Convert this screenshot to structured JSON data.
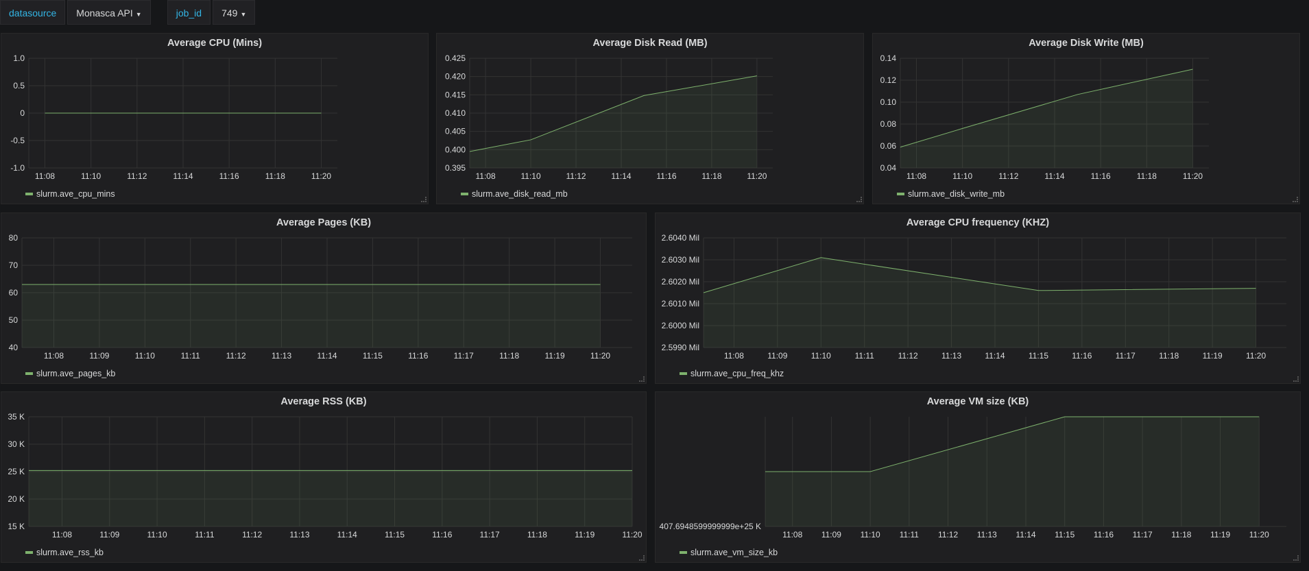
{
  "toolbar": {
    "variables": [
      {
        "label": "datasource",
        "value": "Monasca API"
      },
      {
        "label": "job_id",
        "value": "749"
      }
    ]
  },
  "colors": {
    "series": "#7eb26d",
    "grid": "#333333",
    "text": "#d8d9da",
    "panel_bg": "#1f1f21",
    "link": "#33b5e5"
  },
  "panels": [
    {
      "title": "Average CPU (Mins)",
      "legend": "slurm.ave_cpu_mins",
      "chart_data": {
        "type": "line",
        "x_ticks": [
          "11:08",
          "11:10",
          "11:12",
          "11:14",
          "11:16",
          "11:18",
          "11:20"
        ],
        "y_ticks": [
          "1.0",
          "0.5",
          "0",
          "-0.5",
          "-1.0"
        ],
        "ylim": [
          -1.0,
          1.0
        ],
        "xlim_min": [
          -0.7,
          12.7
        ],
        "points": [
          [
            0,
            0
          ],
          [
            12,
            0
          ]
        ],
        "fill": false
      }
    },
    {
      "title": "Average Disk Read (MB)",
      "legend": "slurm.ave_disk_read_mb",
      "chart_data": {
        "type": "area",
        "x_ticks": [
          "11:08",
          "11:10",
          "11:12",
          "11:14",
          "11:16",
          "11:18",
          "11:20"
        ],
        "y_ticks": [
          "0.425",
          "0.420",
          "0.415",
          "0.410",
          "0.405",
          "0.400",
          "0.395"
        ],
        "ylim": [
          0.395,
          0.425
        ],
        "xlim_min": [
          -0.7,
          12.7
        ],
        "points": [
          [
            -0.7,
            0.3995
          ],
          [
            2,
            0.4027
          ],
          [
            7,
            0.4148
          ],
          [
            12,
            0.4202
          ]
        ],
        "fill": true
      }
    },
    {
      "title": "Average Disk Write (MB)",
      "legend": "slurm.ave_disk_write_mb",
      "chart_data": {
        "type": "area",
        "x_ticks": [
          "11:08",
          "11:10",
          "11:12",
          "11:14",
          "11:16",
          "11:18",
          "11:20"
        ],
        "y_ticks": [
          "0.14",
          "0.12",
          "0.10",
          "0.08",
          "0.06",
          "0.04"
        ],
        "ylim": [
          0.04,
          0.14
        ],
        "xlim_min": [
          -0.7,
          12.7
        ],
        "points": [
          [
            -0.7,
            0.059
          ],
          [
            2,
            0.076
          ],
          [
            7,
            0.107
          ],
          [
            12,
            0.13
          ]
        ],
        "fill": true
      }
    },
    {
      "title": "Average Pages (KB)",
      "legend": "slurm.ave_pages_kb",
      "chart_data": {
        "type": "area",
        "x_ticks": [
          "11:08",
          "11:09",
          "11:10",
          "11:11",
          "11:12",
          "11:13",
          "11:14",
          "11:15",
          "11:16",
          "11:17",
          "11:18",
          "11:19",
          "11:20"
        ],
        "y_ticks": [
          "80",
          "70",
          "60",
          "50",
          "40"
        ],
        "ylim": [
          40,
          80
        ],
        "xlim_min": [
          -0.7,
          12.7
        ],
        "points": [
          [
            -0.7,
            63
          ],
          [
            12,
            63
          ]
        ],
        "fill": true
      }
    },
    {
      "title": "Average CPU frequency (KHZ)",
      "legend": "slurm.ave_cpu_freq_khz",
      "chart_data": {
        "type": "area",
        "x_ticks": [
          "11:08",
          "11:09",
          "11:10",
          "11:11",
          "11:12",
          "11:13",
          "11:14",
          "11:15",
          "11:16",
          "11:17",
          "11:18",
          "11:19",
          "11:20"
        ],
        "y_ticks": [
          "2.6040 Mil",
          "2.6030 Mil",
          "2.6020 Mil",
          "2.6010 Mil",
          "2.6000 Mil",
          "2.5990 Mil"
        ],
        "ylim": [
          2599000,
          2604000
        ],
        "xlim_min": [
          -0.7,
          12.7
        ],
        "points": [
          [
            -0.7,
            2601500
          ],
          [
            2,
            2603100
          ],
          [
            7,
            2601600
          ],
          [
            12,
            2601700
          ]
        ],
        "fill": true
      }
    },
    {
      "title": "Average RSS (KB)",
      "legend": "slurm.ave_rss_kb",
      "chart_data": {
        "type": "area",
        "x_ticks": [
          "11:08",
          "11:09",
          "11:10",
          "11:11",
          "11:12",
          "11:13",
          "11:14",
          "11:15",
          "11:16",
          "11:17",
          "11:18",
          "11:19",
          "11:20"
        ],
        "y_ticks": [
          "35 K",
          "30 K",
          "25 K",
          "20 K",
          "15 K"
        ],
        "ylim": [
          15000,
          35000
        ],
        "xlim_min": [
          -0.7,
          12.0
        ],
        "points": [
          [
            -0.7,
            25200
          ],
          [
            12,
            25200
          ]
        ],
        "fill": true
      }
    },
    {
      "title": "Average VM size (KB)",
      "legend": "slurm.ave_vm_size_kb",
      "chart_data": {
        "type": "area",
        "x_ticks": [
          "11:08",
          "11:09",
          "11:10",
          "11:11",
          "11:12",
          "11:13",
          "11:14",
          "11:15",
          "11:16",
          "11:17",
          "11:18",
          "11:19",
          "11:20"
        ],
        "y_ticks": [
          "407.6948599999999e+25 K"
        ],
        "y_tick_values": [
          0
        ],
        "ylim": [
          0,
          1
        ],
        "xlim_min": [
          -0.7,
          12.7
        ],
        "points": [
          [
            -0.7,
            0.5
          ],
          [
            2,
            0.5
          ],
          [
            7,
            1
          ],
          [
            12,
            1
          ]
        ],
        "fill": true
      }
    }
  ]
}
